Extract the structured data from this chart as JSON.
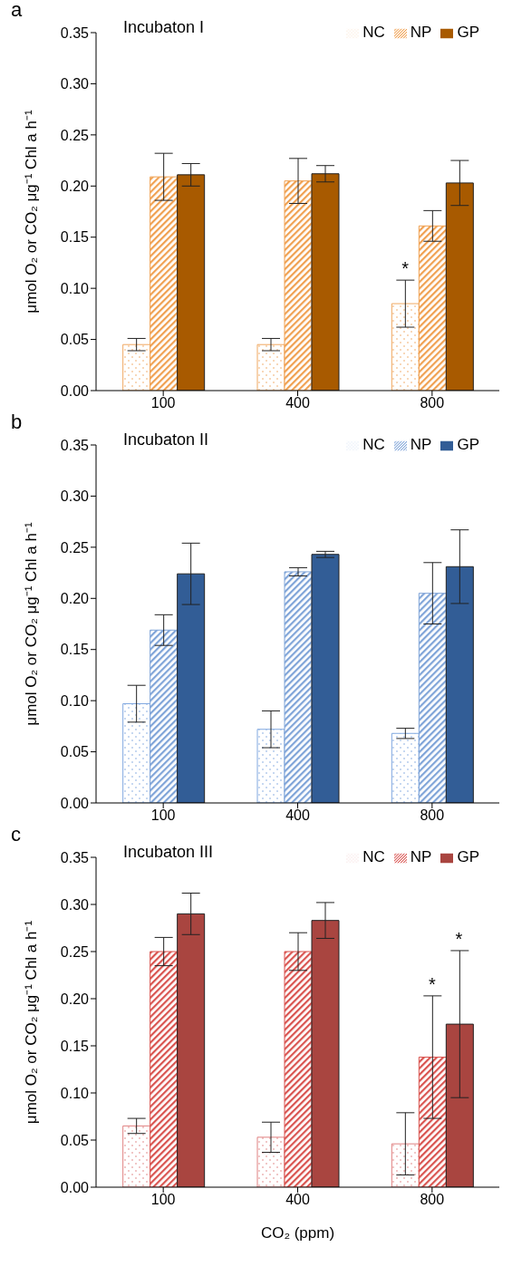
{
  "chart_data": [
    {
      "type": "bar",
      "title": "Incubaton I",
      "ylabel": "μmol O₂ or CO₂ μg⁻¹ Chl a h⁻¹",
      "categories": [
        "100",
        "400",
        "800"
      ],
      "series": [
        {
          "name": "NC",
          "color": "#f0a860",
          "values": [
            0.045,
            0.045,
            0.085
          ],
          "errors": [
            0.006,
            0.006,
            0.023
          ]
        },
        {
          "name": "NP",
          "color": "#f0a050",
          "values": [
            0.209,
            0.205,
            0.161
          ],
          "errors": [
            0.023,
            0.022,
            0.015
          ]
        },
        {
          "name": "GP",
          "color": "#a85a00",
          "values": [
            0.211,
            0.212,
            0.203
          ],
          "errors": [
            0.011,
            0.008,
            0.022
          ]
        }
      ],
      "ylim": [
        0,
        0.35
      ],
      "yticks": [
        {
          "value": 0,
          "label": "0.00"
        },
        {
          "value": 0.05,
          "label": "0.05"
        },
        {
          "value": 0.1,
          "label": "0.10"
        },
        {
          "value": 0.15,
          "label": "0.15"
        },
        {
          "value": 0.2,
          "label": "0.20"
        },
        {
          "value": 0.25,
          "label": "0.25"
        },
        {
          "value": 0.3,
          "label": "0.30"
        },
        {
          "value": 0.35,
          "label": "0.35"
        }
      ],
      "legend": "top right",
      "grid": false,
      "annotations": [
        "a",
        "*"
      ]
    },
    {
      "type": "bar",
      "title": "Incubaton II",
      "ylabel": "μmol O₂ or CO₂ μg⁻¹ Chl a h⁻¹",
      "categories": [
        "100",
        "400",
        "800"
      ],
      "series": [
        {
          "name": "NC",
          "color": "#80a8e0",
          "values": [
            0.097,
            0.072,
            0.068
          ],
          "errors": [
            0.018,
            0.018,
            0.005
          ]
        },
        {
          "name": "NP",
          "color": "#7fa4d8",
          "values": [
            0.169,
            0.226,
            0.205
          ],
          "errors": [
            0.015,
            0.004,
            0.03
          ]
        },
        {
          "name": "GP",
          "color": "#325d96",
          "values": [
            0.224,
            0.243,
            0.231
          ],
          "errors": [
            0.03,
            0.003,
            0.036
          ]
        }
      ],
      "ylim": [
        0,
        0.35
      ],
      "yticks": [
        {
          "value": 0,
          "label": "0.00"
        },
        {
          "value": 0.05,
          "label": "0.05"
        },
        {
          "value": 0.1,
          "label": "0.10"
        },
        {
          "value": 0.15,
          "label": "0.15"
        },
        {
          "value": 0.2,
          "label": "0.20"
        },
        {
          "value": 0.25,
          "label": "0.25"
        },
        {
          "value": 0.3,
          "label": "0.30"
        },
        {
          "value": 0.35,
          "label": "0.35"
        }
      ],
      "legend": "top right",
      "grid": false,
      "annotations": [
        "b"
      ]
    },
    {
      "type": "bar",
      "title": "Incubaton III",
      "ylabel": "μmol O₂ or CO₂ μg⁻¹ Chl a h⁻¹",
      "xlabel": "CO₂ (ppm)",
      "categories": [
        "100",
        "400",
        "800"
      ],
      "series": [
        {
          "name": "NC",
          "color": "#e08080",
          "values": [
            0.065,
            0.053,
            0.046
          ],
          "errors": [
            0.008,
            0.016,
            0.033
          ]
        },
        {
          "name": "NP",
          "color": "#d9534f",
          "values": [
            0.25,
            0.25,
            0.138
          ],
          "errors": [
            0.015,
            0.02,
            0.065
          ]
        },
        {
          "name": "GP",
          "color": "#a94540",
          "values": [
            0.29,
            0.283,
            0.173
          ],
          "errors": [
            0.022,
            0.019,
            0.078
          ]
        }
      ],
      "ylim": [
        0,
        0.35
      ],
      "yticks": [
        {
          "value": 0,
          "label": "0.00"
        },
        {
          "value": 0.05,
          "label": "0.05"
        },
        {
          "value": 0.1,
          "label": "0.10"
        },
        {
          "value": 0.15,
          "label": "0.15"
        },
        {
          "value": 0.2,
          "label": "0.20"
        },
        {
          "value": 0.25,
          "label": "0.25"
        },
        {
          "value": 0.3,
          "label": "0.30"
        },
        {
          "value": 0.35,
          "label": "0.35"
        }
      ],
      "legend": "top right",
      "grid": false,
      "annotations": [
        "c",
        "*",
        "*"
      ]
    }
  ]
}
